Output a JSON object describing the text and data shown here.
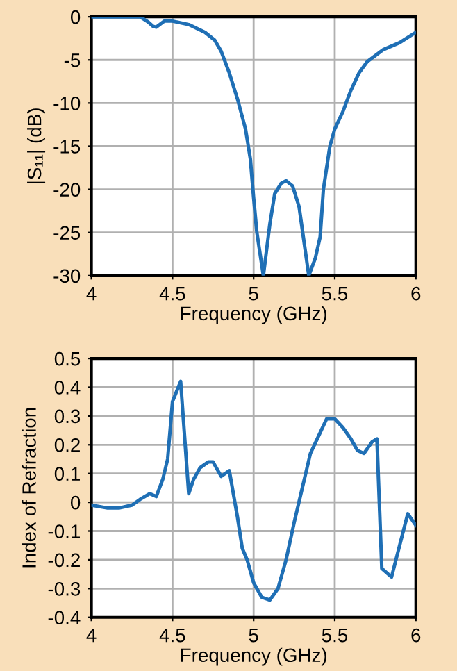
{
  "chart_data": [
    {
      "type": "line",
      "xlabel": "Frequency (GHz)",
      "ylabel": "|S₁₁| (dB)",
      "xlim": [
        4,
        6
      ],
      "ylim": [
        -30,
        0
      ],
      "xticks": [
        4,
        4.5,
        5,
        5.5,
        6
      ],
      "yticks": [
        -30,
        -25,
        -20,
        -15,
        -10,
        -5,
        0
      ],
      "grid": true,
      "marker": "none",
      "line_style": "solid",
      "series": [
        {
          "color": "#1f6fb5",
          "x": [
            4,
            4.3,
            4.35,
            4.38,
            4.4,
            4.45,
            4.5,
            4.6,
            4.7,
            4.76,
            4.8,
            4.85,
            4.9,
            4.95,
            4.98,
            5.0,
            5.02,
            5.06,
            5.08,
            5.1,
            5.13,
            5.17,
            5.2,
            5.24,
            5.28,
            5.31,
            5.34,
            5.38,
            5.41,
            5.43,
            5.47,
            5.5,
            5.55,
            5.6,
            5.65,
            5.7,
            5.8,
            5.9,
            6
          ],
          "values": [
            0,
            0,
            -0.6,
            -1.1,
            -1.2,
            -0.5,
            -0.5,
            -0.9,
            -1.8,
            -2.7,
            -4,
            -6.5,
            -9.5,
            -13,
            -16.5,
            -21,
            -25,
            -30,
            -27,
            -24,
            -20.5,
            -19.3,
            -19,
            -19.6,
            -22,
            -26,
            -30,
            -28,
            -25.5,
            -20,
            -15,
            -13,
            -11,
            -8.5,
            -6.5,
            -5.2,
            -3.8,
            -3,
            -1.8
          ]
        }
      ]
    },
    {
      "type": "line",
      "xlabel": "Frequency (GHz)",
      "ylabel": "Index of Refraction",
      "xlim": [
        4,
        6
      ],
      "ylim": [
        -0.4,
        0.5
      ],
      "xticks": [
        4,
        4.5,
        5,
        5.5,
        6
      ],
      "yticks": [
        -0.4,
        -0.3,
        -0.2,
        -0.1,
        0,
        0.1,
        0.2,
        0.3,
        0.4,
        0.5
      ],
      "grid": true,
      "marker": "none",
      "line_style": "solid",
      "series": [
        {
          "color": "#1f6fb5",
          "x": [
            4,
            4.1,
            4.17,
            4.25,
            4.3,
            4.36,
            4.4,
            4.44,
            4.47,
            4.5,
            4.55,
            4.6,
            4.63,
            4.67,
            4.72,
            4.75,
            4.8,
            4.85,
            4.9,
            4.93,
            4.96,
            5.0,
            5.05,
            5.1,
            5.15,
            5.2,
            5.25,
            5.3,
            5.35,
            5.4,
            5.45,
            5.5,
            5.55,
            5.6,
            5.64,
            5.68,
            5.73,
            5.76,
            5.79,
            5.85,
            5.9,
            5.95,
            6
          ],
          "values": [
            -0.01,
            -0.02,
            -0.02,
            -0.01,
            0.01,
            0.03,
            0.02,
            0.08,
            0.15,
            0.35,
            0.42,
            0.03,
            0.08,
            0.12,
            0.14,
            0.14,
            0.09,
            0.11,
            -0.05,
            -0.16,
            -0.2,
            -0.28,
            -0.33,
            -0.34,
            -0.3,
            -0.2,
            -0.07,
            0.05,
            0.17,
            0.23,
            0.29,
            0.29,
            0.26,
            0.22,
            0.18,
            0.17,
            0.21,
            0.22,
            -0.23,
            -0.26,
            -0.15,
            -0.04,
            -0.08
          ]
        }
      ]
    }
  ]
}
